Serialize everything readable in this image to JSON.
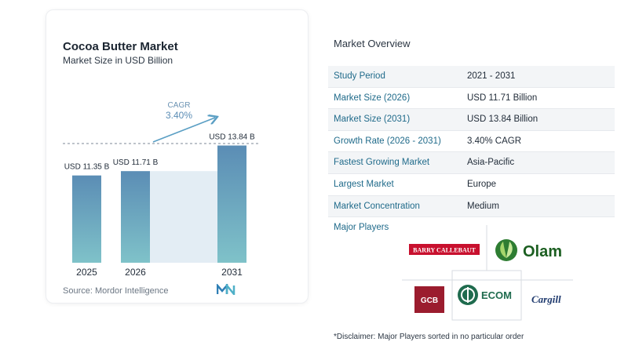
{
  "chart": {
    "title": "Cocoa Butter Market",
    "subtitle": "Market Size in USD Billion",
    "source": "Source:  Mordor Intelligence",
    "cagr_label": "CAGR",
    "cagr_value": "3.40%"
  },
  "chart_data": {
    "type": "bar",
    "title": "Cocoa Butter Market",
    "subtitle": "Market Size in USD Billion",
    "categories": [
      "2025",
      "2026",
      "2031"
    ],
    "values": [
      11.35,
      11.71,
      13.84
    ],
    "data_labels": [
      "USD 11.35 B",
      "USD 11.71 B",
      "USD 13.84 B"
    ],
    "annotation": "CAGR 3.40%",
    "colors": {
      "bar_top": "#5b8db5",
      "bar_bottom": "#7fc2c9",
      "gap_fill": "#e3edf4",
      "arrow": "#5b9fc4"
    }
  },
  "overview": {
    "title": "Market Overview",
    "rows": [
      {
        "key": "Study Period",
        "value": "2021 - 2031"
      },
      {
        "key": "Market Size (2026)",
        "value": "USD 11.71 Billion"
      },
      {
        "key": "Market Size (2031)",
        "value": "USD 13.84 Billion"
      },
      {
        "key": "Growth Rate (2026 - 2031)",
        "value": "3.40% CAGR"
      },
      {
        "key": "Fastest Growing Market",
        "value": "Asia-Pacific"
      },
      {
        "key": "Largest Market",
        "value": "Europe"
      },
      {
        "key": "Market Concentration",
        "value": "Medium"
      }
    ]
  },
  "players": {
    "label": "Major Players",
    "logos": {
      "barry": "BARRY CALLEBAUT",
      "olam": "Olam",
      "gcb": "GCB",
      "ecom": "ECOM",
      "cargill": "Cargill"
    }
  },
  "disclaimer": "*Disclaimer: Major Players sorted in no particular order"
}
